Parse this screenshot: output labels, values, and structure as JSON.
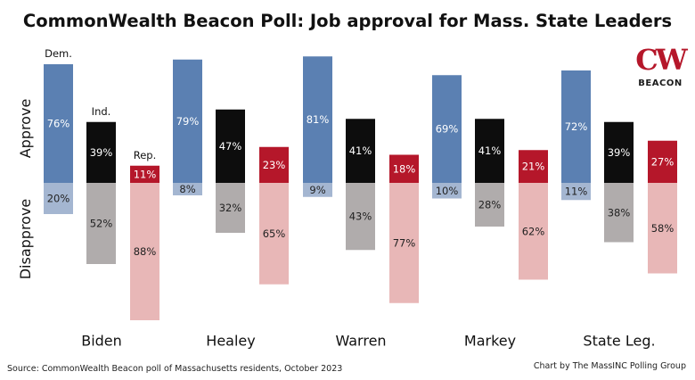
{
  "chart_data": {
    "type": "bar",
    "title": "CommonWealth Beacon Poll: Job approval for Mass. State Leaders",
    "ylabel_top": "Approve",
    "ylabel_bottom": "Disapprove",
    "ylim": [
      -95,
      95
    ],
    "categories": [
      "Biden",
      "Healey",
      "Warren",
      "Markey",
      "State Leg."
    ],
    "series": [
      {
        "name": "Dem.",
        "approve": [
          76,
          79,
          81,
          69,
          72
        ],
        "disapprove": [
          20,
          8,
          9,
          10,
          11
        ]
      },
      {
        "name": "Ind.",
        "approve": [
          39,
          47,
          41,
          41,
          39
        ],
        "disapprove": [
          52,
          32,
          43,
          28,
          38
        ]
      },
      {
        "name": "Rep.",
        "approve": [
          11,
          23,
          18,
          21,
          27
        ],
        "disapprove": [
          88,
          65,
          77,
          62,
          58
        ]
      }
    ],
    "value_suffix": "%"
  },
  "colors": {
    "dem_approve": "#5b80b2",
    "dem_disapprove": "#a4b6d1",
    "ind_approve": "#0d0d0d",
    "ind_disapprove": "#b0acac",
    "rep_approve": "#b5172a",
    "rep_disapprove": "#e8b7b7",
    "logo_red": "#b5172a",
    "logo_dark": "#1a1a1a"
  },
  "logo": {
    "mark": "CW",
    "text": "BEACON"
  },
  "footer": {
    "source": "Source: CommonWealth Beacon poll of Massachusetts residents, October 2023",
    "credit": "Chart by The MassINC Polling Group"
  }
}
